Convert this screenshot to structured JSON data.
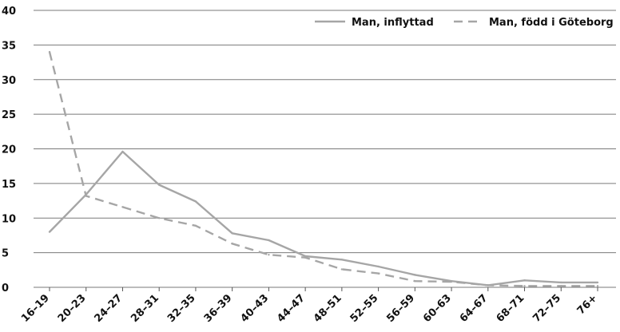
{
  "chart_data": {
    "type": "line",
    "title": "",
    "xlabel": "",
    "ylabel": "",
    "ylim": [
      0,
      40
    ],
    "yticks": [
      0,
      5,
      10,
      15,
      20,
      25,
      30,
      35,
      40
    ],
    "grid": "horizontal",
    "legend_position": "top-right",
    "categories": [
      "16–19",
      "20–23",
      "24–27",
      "28–31",
      "32–35",
      "36–39",
      "40–43",
      "44–47",
      "48–51",
      "52–55",
      "56–59",
      "60–63",
      "64–67",
      "68–71",
      "72–75",
      "76+"
    ],
    "series": [
      {
        "name": "Man, inflyttad",
        "style": "solid",
        "color": "#a6a6a6",
        "values": [
          8.0,
          13.4,
          19.6,
          14.8,
          12.4,
          7.8,
          6.8,
          4.5,
          4.0,
          3.0,
          1.8,
          0.9,
          0.3,
          1.0,
          0.7,
          0.7
        ]
      },
      {
        "name": "Man, född i Göteborg",
        "style": "dashed",
        "color": "#a6a6a6",
        "values": [
          34.0,
          13.2,
          11.6,
          10.0,
          8.9,
          6.3,
          4.7,
          4.3,
          2.6,
          2.0,
          0.9,
          0.8,
          0.3,
          0.2,
          0.2,
          0.2
        ]
      }
    ]
  }
}
